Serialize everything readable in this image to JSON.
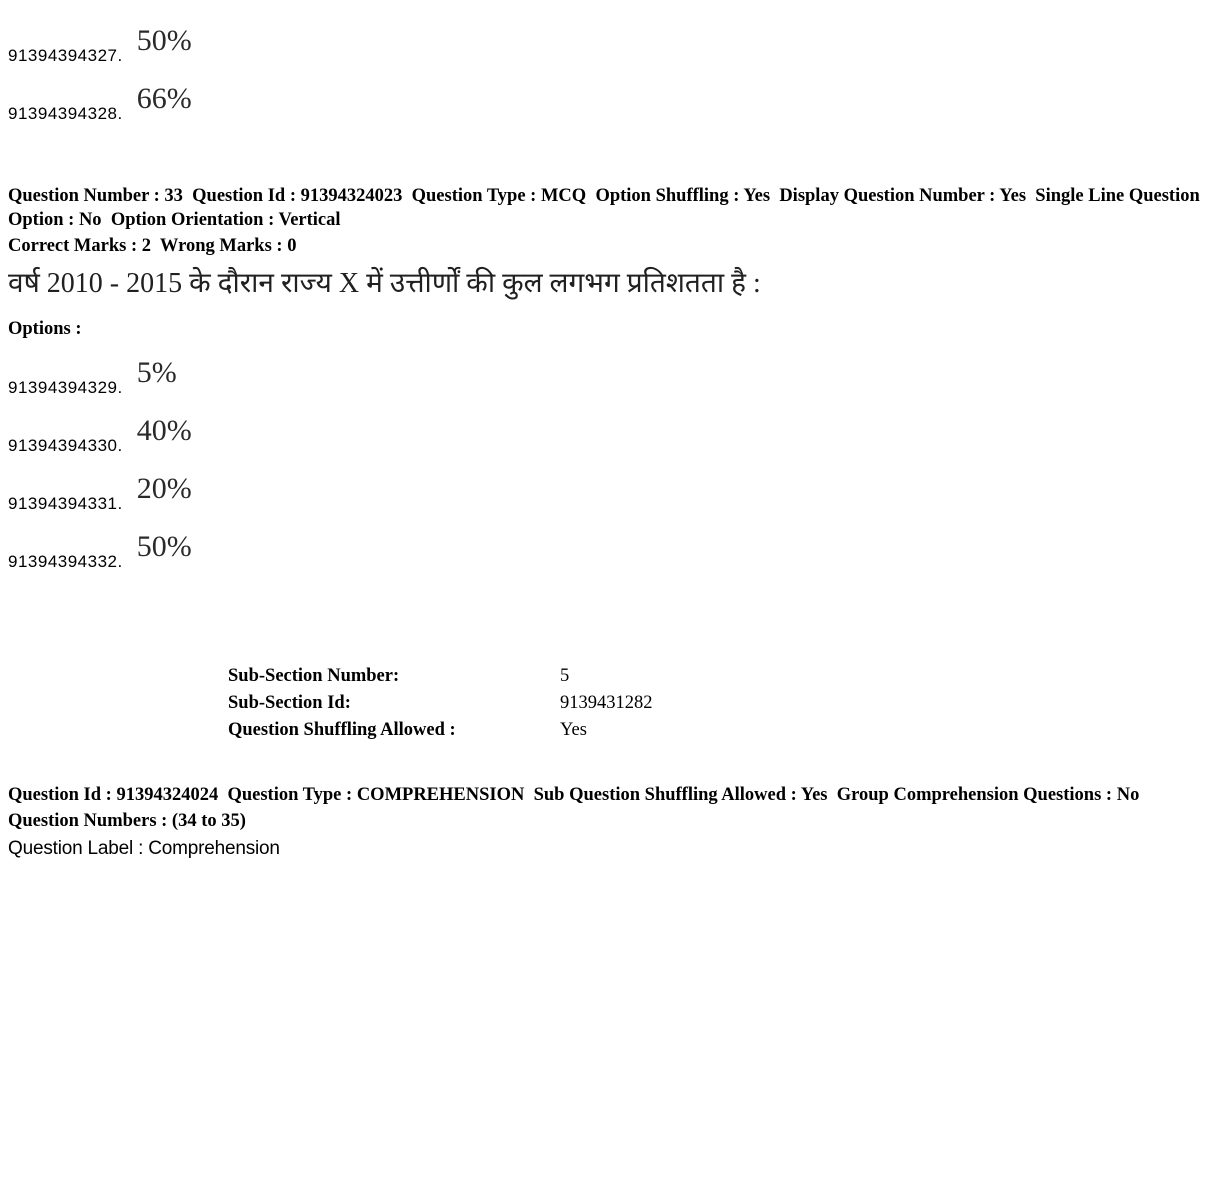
{
  "top_options": [
    {
      "id": "91394394327.",
      "value": "50%"
    },
    {
      "id": "91394394328.",
      "value": "66%"
    }
  ],
  "q33": {
    "meta_parts": {
      "qnum_label": "Question Number :",
      "qnum_value": "33",
      "qid_label": "Question Id :",
      "qid_value": "91394324023",
      "qtype_label": "Question Type :",
      "qtype_value": "MCQ",
      "shuffle_label": "Option Shuffling :",
      "shuffle_value": "Yes",
      "display_qnum_label": "Display Question Number :",
      "display_qnum_value": "Yes",
      "single_line_label": "Single Line Question Option :",
      "single_line_value": "No",
      "orientation_label": "Option Orientation :",
      "orientation_value": "Vertical"
    },
    "marks": {
      "correct_label": "Correct Marks :",
      "correct_value": "2",
      "wrong_label": "Wrong Marks :",
      "wrong_value": "0"
    },
    "question_text": "वर्ष 2010 - 2015 के दौरान राज्य X में उत्तीर्णों की कुल लगभग प्रतिशतता है :",
    "options_label": "Options :",
    "options": [
      {
        "id": "91394394329.",
        "value": "5%"
      },
      {
        "id": "91394394330.",
        "value": "40%"
      },
      {
        "id": "91394394331.",
        "value": "20%"
      },
      {
        "id": "91394394332.",
        "value": "50%"
      }
    ]
  },
  "sub_section": {
    "rows": [
      {
        "label": "Sub-Section Number:",
        "value": "5"
      },
      {
        "label": "Sub-Section Id:",
        "value": "9139431282"
      },
      {
        "label": "Question Shuffling Allowed :",
        "value": "Yes"
      }
    ]
  },
  "q34": {
    "meta_parts": {
      "qid_label": "Question Id :",
      "qid_value": "91394324024",
      "qtype_label": "Question Type :",
      "qtype_value": "COMPREHENSION",
      "subq_shuffle_label": "Sub Question Shuffling Allowed :",
      "subq_shuffle_value": "Yes",
      "group_label": "Group Comprehension Questions :",
      "group_value": "No"
    },
    "qnumbers": "Question Numbers : (34 to 35)",
    "qlabel": "Question Label : Comprehension"
  }
}
